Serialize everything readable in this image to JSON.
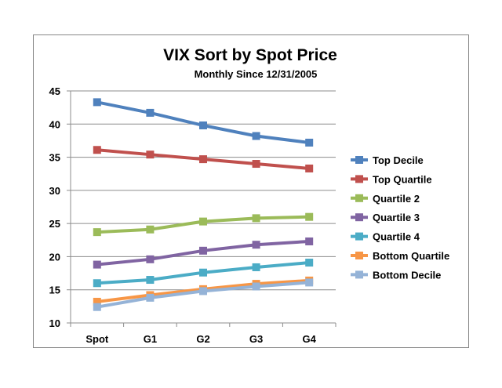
{
  "chart_data": {
    "type": "line",
    "title": "VIX Sort by Spot Price",
    "subtitle": "Monthly Since 12/31/2005",
    "categories": [
      "Spot",
      "G1",
      "G2",
      "G3",
      "G4"
    ],
    "ylim": [
      10,
      45
    ],
    "yticks": [
      10,
      15,
      20,
      25,
      30,
      35,
      40,
      45
    ],
    "grid": true,
    "legend_position": "right",
    "series": [
      {
        "name": "Top Decile",
        "color": "#4F81BD",
        "values": [
          43.3,
          41.7,
          39.8,
          38.2,
          37.2
        ]
      },
      {
        "name": "Top Quartile",
        "color": "#C0504D",
        "values": [
          36.1,
          35.4,
          34.7,
          34.0,
          33.3
        ]
      },
      {
        "name": "Quartile 2",
        "color": "#9BBB59",
        "values": [
          23.7,
          24.1,
          25.3,
          25.8,
          26.0
        ]
      },
      {
        "name": "Quartile 3",
        "color": "#8064A2",
        "values": [
          18.8,
          19.6,
          20.9,
          21.8,
          22.3
        ]
      },
      {
        "name": "Quartile 4",
        "color": "#4BACC6",
        "values": [
          16.0,
          16.5,
          17.6,
          18.4,
          19.1
        ]
      },
      {
        "name": "Bottom Quartile",
        "color": "#F79646",
        "values": [
          13.2,
          14.2,
          15.1,
          15.9,
          16.4
        ]
      },
      {
        "name": "Bottom Decile",
        "color": "#95B3D7",
        "values": [
          12.4,
          13.8,
          14.8,
          15.5,
          16.1
        ]
      }
    ]
  }
}
